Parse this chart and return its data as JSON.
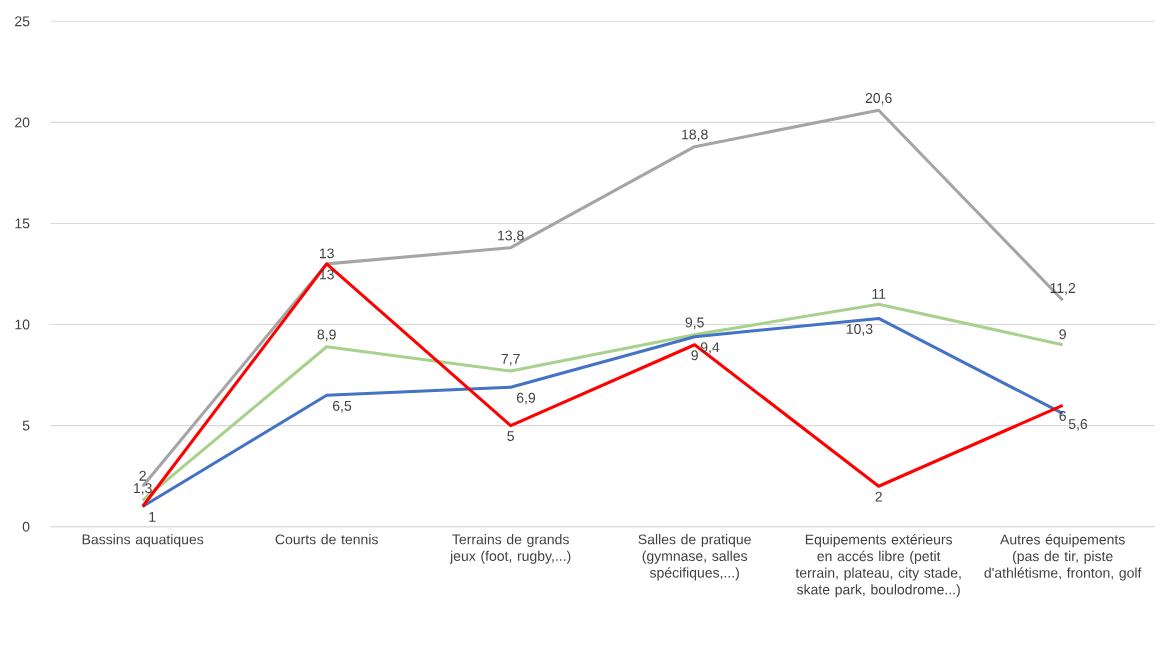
{
  "chart_data": {
    "type": "line",
    "categories": [
      "Bassins aquatiques",
      "Courts de tennis",
      "Terrains de grands jeux (foot, rugby,...)",
      "Salles de pratique (gymnase, salles spécifiques,...)",
      "Equipements extérieurs en accés libre (petit terrain, plateau, city stade, skate park, boulodrome...)",
      "Autres équipements (pas de tir, piste d'athlétisme, fronton, golf"
    ],
    "series": [
      {
        "color": "#a5a5a5",
        "values": [
          2,
          13,
          13.8,
          18.8,
          20.6,
          11.2
        ],
        "value_labels": [
          "2",
          "13",
          "13,8",
          "18,8",
          "20,6",
          "11,2"
        ]
      },
      {
        "color": "#a9d18e",
        "values": [
          1.3,
          8.9,
          7.7,
          9.5,
          11,
          9
        ],
        "value_labels": [
          "1,3",
          "8,9",
          "7,7",
          "9,5",
          "11",
          "9"
        ]
      },
      {
        "color": "#4472c4",
        "values": [
          1,
          6.5,
          6.9,
          9.4,
          10.3,
          5.6
        ],
        "value_labels": [
          "1",
          "6,5",
          "6,9",
          "9,4",
          "10,3",
          "5,6"
        ]
      },
      {
        "color": "#ff0000",
        "values": [
          1,
          13,
          5,
          9,
          2,
          6
        ],
        "value_labels": [
          null,
          "13",
          "5",
          "9",
          "2",
          "6"
        ]
      }
    ],
    "ylim": [
      0,
      25
    ],
    "yticks": [
      0,
      5,
      10,
      15,
      20,
      25
    ],
    "grid": "y",
    "marker": "none",
    "line_style": "solid"
  }
}
